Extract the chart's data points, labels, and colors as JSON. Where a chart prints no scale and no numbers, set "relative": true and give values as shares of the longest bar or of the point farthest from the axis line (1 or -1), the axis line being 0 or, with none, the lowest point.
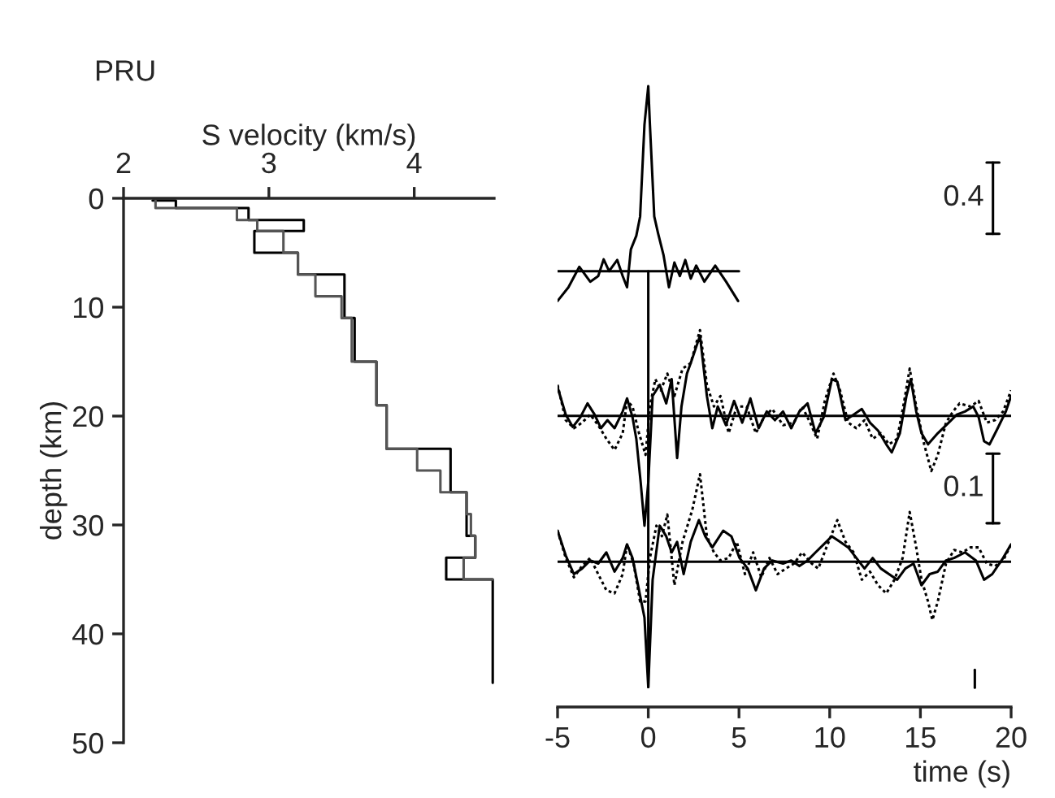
{
  "chart_data": [
    {
      "type": "line",
      "title": "PRU",
      "xlabel": "S velocity (km/s)",
      "ylabel": "depth (km)",
      "xlim": [
        2,
        4.55
      ],
      "xticks": [
        2,
        3,
        4
      ],
      "ylim": [
        50,
        0
      ],
      "yticks": [
        0,
        10,
        20,
        30,
        40,
        50
      ],
      "grid": false,
      "legend": false,
      "series": [
        {
          "color": "#000000",
          "x": [
            2.2,
            2.36,
            2.36,
            2.86,
            2.86,
            3.24,
            3.24,
            2.9,
            2.9,
            3.2,
            3.2,
            3.52,
            3.52,
            3.59,
            3.59,
            3.74,
            3.74,
            3.81,
            3.81,
            4.25,
            4.25,
            4.36,
            4.36,
            4.42,
            4.42,
            4.22,
            4.22,
            4.54,
            4.54
          ],
          "values": [
            0.2,
            0.2,
            0.9,
            0.9,
            2,
            2,
            3,
            3,
            5,
            5,
            7,
            7,
            11,
            11,
            15,
            15,
            19,
            19,
            23,
            23,
            27,
            27,
            31,
            31,
            33,
            33,
            35,
            35,
            44.5
          ]
        },
        {
          "color": "#555555",
          "x": [
            2.22,
            2.22,
            2.78,
            2.78,
            2.92,
            2.92,
            3.1,
            3.1,
            3.2,
            3.2,
            3.32,
            3.32,
            3.5,
            3.5,
            3.57,
            3.57,
            3.74,
            3.74,
            3.81,
            3.81,
            4.02,
            4.02,
            4.18,
            4.18,
            4.36,
            4.36,
            4.39,
            4.39,
            4.42,
            4.42,
            4.34,
            4.34,
            4.54
          ],
          "values": [
            0.2,
            0.9,
            0.9,
            2,
            2,
            3,
            3,
            5,
            5,
            7,
            7,
            9,
            9,
            11,
            11,
            15,
            15,
            19,
            19,
            23,
            23,
            25,
            25,
            27,
            27,
            29,
            29,
            31,
            31,
            33,
            33,
            35,
            35
          ]
        }
      ]
    },
    {
      "type": "line",
      "relative": true,
      "xlabel": "time (s)",
      "xlim": [
        -5,
        20
      ],
      "xticks": [
        -5,
        0,
        5,
        10,
        15,
        20
      ],
      "tick_labels": "x",
      "grid": false,
      "legend": false,
      "annotations": [
        {
          "text": "0.4",
          "x": 19,
          "y": 0.82
        },
        {
          "text": "0.1",
          "x": 19,
          "y": 0.352
        }
      ],
      "series": [
        {
          "type": "line",
          "color": "#000000",
          "line_style": "solid",
          "x": [
            -5.0,
            -4.4,
            -3.8,
            -3.2,
            -2.76,
            -2.46,
            -2.16,
            -1.71,
            -1.41,
            -1.17,
            -0.96,
            -0.66,
            -0.45,
            -0.21,
            0,
            0.09,
            0.33,
            0.54,
            0.84,
            1.14,
            1.44,
            1.74,
            2.04,
            2.34,
            2.64,
            3.09,
            3.69,
            4.29,
            4.95
          ],
          "values": [
            0.654,
            0.676,
            0.709,
            0.685,
            0.694,
            0.721,
            0.702,
            0.72,
            0.694,
            0.676,
            0.737,
            0.759,
            0.79,
            0.938,
            1.0,
            0.938,
            0.79,
            0.763,
            0.728,
            0.676,
            0.716,
            0.694,
            0.72,
            0.69,
            0.711,
            0.685,
            0.711,
            0.685,
            0.654
          ]
        },
        {
          "type": "line",
          "color": "#000000",
          "line_style": "solid",
          "x": [
            -5,
            5
          ],
          "values": [
            0.702,
            0.702
          ]
        },
        {
          "type": "line",
          "color": "#000000",
          "line_style": "solid",
          "x": [
            -5.0,
            -4.55,
            -4.16,
            -3.74,
            -3.35,
            -2.96,
            -2.61,
            -2.25,
            -1.86,
            -1.41,
            -1.17,
            -0.87,
            -0.66,
            -0.42,
            -0.21,
            0,
            0.24,
            0.63,
            0.99,
            1.29,
            1.59,
            1.83,
            2.13,
            2.34,
            2.85,
            3.23,
            3.53,
            3.83,
            4.28,
            4.73,
            5.18,
            5.63,
            6.08,
            6.53,
            6.98,
            7.43,
            7.88,
            8.33,
            8.78,
            9.22,
            9.67,
            10.12,
            10.42,
            10.87,
            11.32,
            11.77,
            12.22,
            12.67,
            13.12,
            13.42,
            13.87,
            14.23,
            14.47,
            14.77,
            15.06,
            15.42,
            15.96,
            16.56,
            17.01,
            17.46,
            17.91,
            18.21,
            18.51,
            18.81,
            19.26,
            19.71,
            20.0
          ],
          "values": [
            0.515,
            0.471,
            0.451,
            0.467,
            0.489,
            0.471,
            0.449,
            0.462,
            0.449,
            0.476,
            0.497,
            0.467,
            0.432,
            0.362,
            0.292,
            0.362,
            0.501,
            0.519,
            0.489,
            0.528,
            0.401,
            0.484,
            0.537,
            0.554,
            0.598,
            0.501,
            0.449,
            0.484,
            0.454,
            0.493,
            0.458,
            0.497,
            0.449,
            0.476,
            0.462,
            0.476,
            0.449,
            0.476,
            0.489,
            0.441,
            0.467,
            0.528,
            0.524,
            0.462,
            0.471,
            0.48,
            0.458,
            0.445,
            0.423,
            0.41,
            0.441,
            0.501,
            0.528,
            0.476,
            0.441,
            0.423,
            0.441,
            0.458,
            0.471,
            0.476,
            0.484,
            0.467,
            0.428,
            0.423,
            0.449,
            0.476,
            0.501
          ]
        },
        {
          "type": "line",
          "color": "#000000",
          "line_style": "dotted",
          "x": [
            -5.0,
            -4.55,
            -4.1,
            -3.65,
            -3.2,
            -2.76,
            -2.31,
            -1.86,
            -1.41,
            -1.17,
            -0.87,
            -0.51,
            -0.15,
            0.09,
            0.39,
            0.69,
            1.05,
            1.44,
            1.89,
            2.34,
            2.85,
            3.23,
            3.62,
            3.98,
            4.43,
            4.88,
            5.42,
            5.93,
            6.38,
            6.83,
            7.43,
            8.03,
            8.48,
            8.92,
            9.31,
            9.73,
            10.21,
            10.57,
            11.02,
            11.47,
            11.92,
            12.37,
            12.82,
            13.27,
            13.72,
            14.11,
            14.41,
            14.77,
            15.21,
            15.6,
            15.96,
            16.41,
            16.8,
            17.16,
            17.76,
            18.21,
            18.66,
            19.11,
            19.56,
            20.0
          ],
          "values": [
            0.519,
            0.462,
            0.449,
            0.458,
            0.471,
            0.454,
            0.432,
            0.414,
            0.441,
            0.493,
            0.484,
            0.441,
            0.406,
            0.484,
            0.528,
            0.51,
            0.537,
            0.501,
            0.545,
            0.554,
            0.607,
            0.519,
            0.484,
            0.501,
            0.441,
            0.484,
            0.484,
            0.441,
            0.467,
            0.48,
            0.454,
            0.458,
            0.484,
            0.458,
            0.432,
            0.493,
            0.537,
            0.51,
            0.458,
            0.449,
            0.462,
            0.432,
            0.441,
            0.423,
            0.432,
            0.493,
            0.545,
            0.484,
            0.423,
            0.38,
            0.406,
            0.458,
            0.476,
            0.489,
            0.484,
            0.493,
            0.458,
            0.462,
            0.476,
            0.51
          ]
        },
        {
          "type": "line",
          "color": "#000000",
          "line_style": "solid",
          "x": [
            -5,
            20
          ],
          "values": [
            0.469,
            0.469
          ]
        },
        {
          "type": "line",
          "color": "#000000",
          "line_style": "solid",
          "x": [
            -5.0,
            -4.55,
            -4.1,
            -3.65,
            -3.2,
            -2.76,
            -2.31,
            -1.86,
            -1.41,
            -1.17,
            -0.87,
            -0.51,
            -0.21,
            0,
            0.24,
            0.63,
            0.99,
            1.29,
            1.59,
            1.95,
            2.34,
            2.79,
            3.14,
            3.53,
            4.13,
            4.58,
            5.03,
            5.48,
            5.93,
            6.38,
            6.83,
            7.43,
            7.88,
            8.33,
            8.78,
            9.22,
            9.67,
            10.12,
            10.57,
            11.02,
            11.47,
            11.92,
            12.37,
            12.82,
            13.27,
            13.72,
            14.17,
            14.62,
            15.06,
            15.51,
            15.96,
            16.41,
            16.86,
            17.46,
            18.06,
            18.51,
            18.96,
            19.56,
            20.0
          ],
          "values": [
            0.284,
            0.244,
            0.214,
            0.223,
            0.236,
            0.231,
            0.249,
            0.218,
            0.24,
            0.262,
            0.24,
            0.188,
            0.144,
            0.032,
            0.205,
            0.292,
            0.275,
            0.249,
            0.266,
            0.214,
            0.266,
            0.301,
            0.275,
            0.257,
            0.284,
            0.275,
            0.24,
            0.223,
            0.188,
            0.223,
            0.236,
            0.231,
            0.236,
            0.227,
            0.236,
            0.249,
            0.262,
            0.275,
            0.266,
            0.257,
            0.24,
            0.223,
            0.24,
            0.223,
            0.214,
            0.205,
            0.223,
            0.231,
            0.196,
            0.214,
            0.218,
            0.236,
            0.24,
            0.249,
            0.236,
            0.205,
            0.214,
            0.24,
            0.262
          ]
        },
        {
          "type": "line",
          "color": "#000000",
          "line_style": "dotted",
          "x": [
            -5.0,
            -4.55,
            -4.1,
            -3.65,
            -3.2,
            -2.76,
            -2.31,
            -1.86,
            -1.41,
            -1.17,
            -0.81,
            -0.45,
            -0.15,
            0.09,
            0.45,
            0.75,
            1.05,
            1.44,
            1.89,
            2.43,
            2.85,
            3.23,
            3.62,
            3.98,
            4.43,
            4.88,
            5.33,
            5.78,
            6.23,
            6.68,
            7.13,
            7.58,
            8.03,
            8.48,
            9.01,
            9.37,
            9.82,
            10.42,
            10.87,
            11.32,
            11.77,
            12.22,
            12.67,
            13.12,
            13.57,
            14.02,
            14.41,
            14.77,
            15.06,
            15.42,
            15.66,
            15.96,
            16.41,
            16.86,
            17.31,
            17.76,
            18.21,
            18.66,
            19.11,
            19.56,
            20.0
          ],
          "values": [
            0.284,
            0.24,
            0.209,
            0.227,
            0.24,
            0.214,
            0.188,
            0.183,
            0.214,
            0.262,
            0.231,
            0.17,
            0.17,
            0.24,
            0.292,
            0.275,
            0.31,
            0.196,
            0.266,
            0.318,
            0.375,
            0.275,
            0.249,
            0.236,
            0.24,
            0.266,
            0.214,
            0.249,
            0.209,
            0.24,
            0.214,
            0.223,
            0.231,
            0.249,
            0.231,
            0.223,
            0.257,
            0.301,
            0.266,
            0.249,
            0.205,
            0.218,
            0.196,
            0.183,
            0.205,
            0.24,
            0.314,
            0.257,
            0.205,
            0.17,
            0.14,
            0.17,
            0.231,
            0.253,
            0.249,
            0.257,
            0.257,
            0.231,
            0.227,
            0.236,
            0.262
          ]
        },
        {
          "type": "line",
          "color": "#000000",
          "line_style": "solid",
          "x": [
            -5,
            20
          ],
          "values": [
            0.234,
            0.234
          ]
        },
        {
          "type": "line",
          "color": "#000000",
          "line_style": "solid",
          "x": [
            0,
            0
          ],
          "values": [
            0.032,
            0.702
          ]
        },
        {
          "type": "line",
          "color": "#000000",
          "line_style": "solid",
          "x": [
            18,
            18
          ],
          "values": [
            0.031,
            0.06
          ]
        },
        {
          "type": "line",
          "color": "#000000",
          "line_style": "solid",
          "x": [
            19,
            19
          ],
          "values": [
            0.762,
            0.877
          ]
        },
        {
          "type": "line",
          "color": "#000000",
          "line_style": "solid",
          "x": [
            19,
            19
          ],
          "values": [
            0.296,
            0.408
          ]
        }
      ]
    }
  ]
}
